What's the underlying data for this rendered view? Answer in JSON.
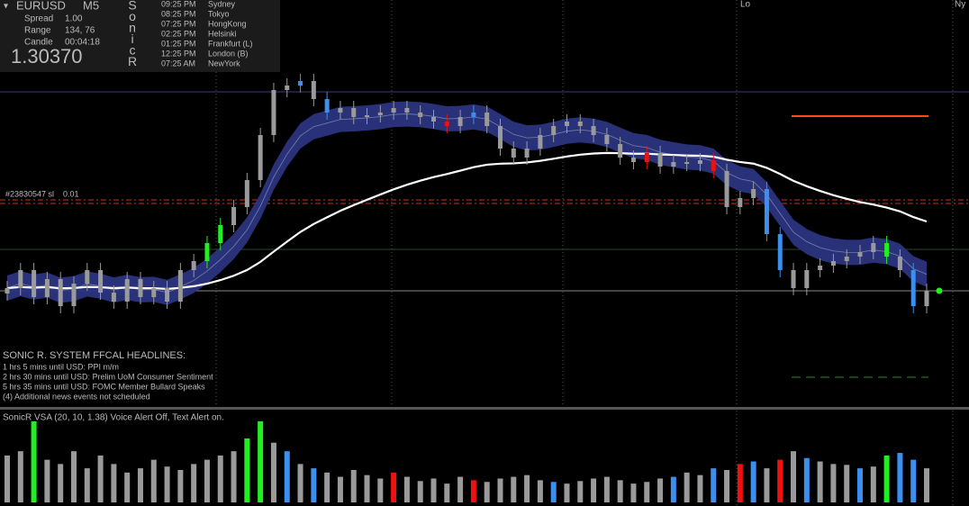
{
  "panel": {
    "symbol": "EURUSD",
    "timeframe": "M5",
    "spread_label": "Spread",
    "spread": "1.00",
    "range_label": "Range",
    "range": "134, 76",
    "candle_label": "Candle",
    "candle": "00:04:18",
    "price": "1.30370",
    "brand": [
      "S",
      "o",
      "n",
      "i",
      "c",
      "R"
    ]
  },
  "sessions": [
    {
      "time": "09:25 PM",
      "name": "Sydney",
      "time_color": "#3a8fef",
      "name_color": "#22cc22"
    },
    {
      "time": "08:25 PM",
      "name": "Tokyo",
      "time_color": "#3a8fef",
      "name_color": "#22cc22"
    },
    {
      "time": "07:25 PM",
      "name": "HongKong",
      "time_color": "#3a8fef",
      "name_color": "#22cc22"
    },
    {
      "time": "02:25 PM",
      "name": "Helsinki",
      "time_color": "#ff8c1a",
      "name_color": "#ee2222"
    },
    {
      "time": "01:25 PM",
      "name": "Frankfurt  (L)",
      "time_color": "#ff8c1a",
      "name_color": "#ee2222"
    },
    {
      "time": "12:25 PM",
      "name": "London  (B)",
      "time_color": "#ff8c1a",
      "name_color": "#ee2222"
    },
    {
      "time": "07:25 AM",
      "name": "NewYork",
      "time_color": "#3a8fef",
      "name_color": "#22cc22"
    }
  ],
  "markers": {
    "lo": "Lo",
    "ny": "Ny",
    "order": "#23830547 sl",
    "lots": "0.01"
  },
  "headlines": {
    "title": "SONIC R. SYSTEM  FFCAL HEADLINES:",
    "items": [
      {
        "text": "1 hrs 5 mins until USD: PPI m/m",
        "color": "#ee1111"
      },
      {
        "text": "2 hrs 30 mins until USD: Prelim UoM Consumer Sentiment",
        "color": "#ee1111"
      },
      {
        "text": "5 hrs 35 mins until USD: FOMC Member Bullard Speaks",
        "color": "#3a8fef"
      },
      {
        "text": "(4)  Additional news events not scheduled",
        "color": "#bbbbbb"
      }
    ]
  },
  "chart_data": {
    "type": "candlestick",
    "closes": [
      1.30385,
      1.30485,
      1.30335,
      1.30435,
      1.30285,
      1.3041,
      1.30485,
      1.3036,
      1.3031,
      1.30435,
      1.30335,
      1.30385,
      1.3031,
      1.30485,
      1.30535,
      1.30635,
      1.30735,
      1.30835,
      1.30985,
      1.31235,
      1.31485,
      1.3151,
      1.31535,
      1.31435,
      1.3136,
      1.31385,
      1.31335,
      1.31345,
      1.3136,
      1.31385,
      1.3136,
      1.31335,
      1.3131,
      1.31285,
      1.31335,
      1.3136,
      1.31285,
      1.3116,
      1.3111,
      1.3116,
      1.31235,
      1.31285,
      1.3131,
      1.31285,
      1.31235,
      1.31185,
      1.3111,
      1.31085,
      1.31135,
      1.3106,
      1.31085,
      1.31075,
      1.31095,
      1.31035,
      1.30835,
      1.30885,
      1.30935,
      1.30685,
      1.30485,
      1.30385,
      1.30485,
      1.3051,
      1.30535,
      1.3056,
      1.30585,
      1.30635,
      1.3056,
      1.30485,
      1.30285,
      1.3037
    ],
    "candle_kinds": "nnnnnnnnnnnnnnnggnnnnnbnbnnnnnnnnrnbnnnnnnnnnnnnrnnnnrnnnbbnnnnnnngnbn",
    "palette": {
      "n": "#9a9a9a",
      "g": "#22ee22",
      "r": "#ee1111",
      "b": "#3a8fef"
    },
    "vsa_title": "SonicR VSA (20, 10, 1.38)   Voice Alert Off, Text Alert on.",
    "volumes": [
      55,
      60,
      95,
      50,
      45,
      60,
      40,
      55,
      45,
      35,
      40,
      50,
      42,
      38,
      45,
      50,
      55,
      60,
      75,
      95,
      70,
      60,
      45,
      40,
      35,
      30,
      38,
      32,
      28,
      35,
      30,
      25,
      28,
      22,
      30,
      26,
      24,
      28,
      30,
      32,
      26,
      24,
      22,
      25,
      28,
      30,
      26,
      22,
      24,
      28,
      30,
      35,
      32,
      40,
      38,
      45,
      48,
      40,
      50,
      60,
      52,
      48,
      45,
      44,
      40,
      42,
      55,
      58,
      50,
      40
    ],
    "volume_kinds": "nngnnnnnnnnnnnnnnnggnbnbnnnnnrnnnnnrnnnnnbnnnnnnnnbnnbnrbnrnbnnnbngbbn"
  }
}
